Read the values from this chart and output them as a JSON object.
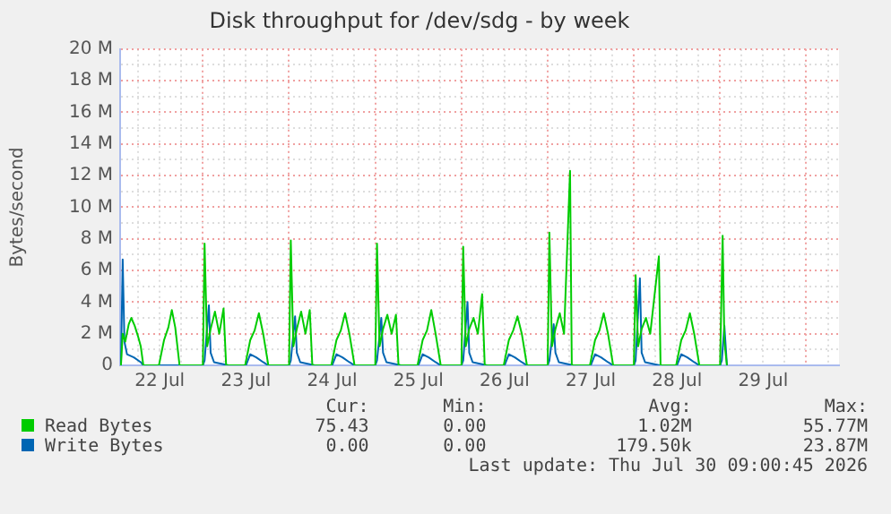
{
  "chart_data": {
    "type": "line",
    "title": "Disk throughput for /dev/sdg - by week",
    "ylabel": "Bytes/second",
    "xlim": [
      "2026-07-22T00:58",
      "2026-07-30T09:07"
    ],
    "ylim": [
      0,
      20
    ],
    "xticks": [
      {
        "value": "2026-07-22T06:00",
        "label": null
      },
      {
        "value": "2026-07-22T12:00",
        "label": "22 Jul"
      },
      {
        "value": "2026-07-22T18:00",
        "label": null
      },
      {
        "value": "2026-07-23T00:00",
        "label": null
      },
      {
        "value": "2026-07-23T06:00",
        "label": null
      },
      {
        "value": "2026-07-23T12:00",
        "label": "23 Jul"
      },
      {
        "value": "2026-07-23T18:00",
        "label": null
      },
      {
        "value": "2026-07-24T00:00",
        "label": null
      },
      {
        "value": "2026-07-24T06:00",
        "label": null
      },
      {
        "value": "2026-07-24T12:00",
        "label": "24 Jul"
      },
      {
        "value": "2026-07-24T18:00",
        "label": null
      },
      {
        "value": "2026-07-25T00:00",
        "label": null
      },
      {
        "value": "2026-07-25T06:00",
        "label": null
      },
      {
        "value": "2026-07-25T12:00",
        "label": "25 Jul"
      },
      {
        "value": "2026-07-25T18:00",
        "label": null
      },
      {
        "value": "2026-07-26T00:00",
        "label": null
      },
      {
        "value": "2026-07-26T06:00",
        "label": null
      },
      {
        "value": "2026-07-26T12:00",
        "label": "26 Jul"
      },
      {
        "value": "2026-07-26T18:00",
        "label": null
      },
      {
        "value": "2026-07-27T00:00",
        "label": null
      },
      {
        "value": "2026-07-27T06:00",
        "label": null
      },
      {
        "value": "2026-07-27T12:00",
        "label": "27 Jul"
      },
      {
        "value": "2026-07-27T18:00",
        "label": null
      },
      {
        "value": "2026-07-28T00:00",
        "label": null
      },
      {
        "value": "2026-07-28T06:00",
        "label": null
      },
      {
        "value": "2026-07-28T12:00",
        "label": "28 Jul"
      },
      {
        "value": "2026-07-28T18:00",
        "label": null
      },
      {
        "value": "2026-07-29T00:00",
        "label": null
      },
      {
        "value": "2026-07-29T06:00",
        "label": null
      },
      {
        "value": "2026-07-29T12:00",
        "label": "29 Jul"
      },
      {
        "value": "2026-07-29T18:00",
        "label": null
      },
      {
        "value": "2026-07-30T00:00",
        "label": null
      },
      {
        "value": "2026-07-30T06:00",
        "label": null
      }
    ],
    "yticks": [
      {
        "value": 0,
        "label": "0"
      },
      {
        "value": 1,
        "label": null
      },
      {
        "value": 2,
        "label": "2 M"
      },
      {
        "value": 3,
        "label": null
      },
      {
        "value": 4,
        "label": "4 M"
      },
      {
        "value": 5,
        "label": null
      },
      {
        "value": 6,
        "label": "6 M"
      },
      {
        "value": 7,
        "label": null
      },
      {
        "value": 8,
        "label": "8 M"
      },
      {
        "value": 9,
        "label": null
      },
      {
        "value": 10,
        "label": "10 M"
      },
      {
        "value": 11,
        "label": null
      },
      {
        "value": 12,
        "label": "12 M"
      },
      {
        "value": 13,
        "label": null
      },
      {
        "value": 14,
        "label": "14 M"
      },
      {
        "value": 15,
        "label": null
      },
      {
        "value": 16,
        "label": "16 M"
      },
      {
        "value": 17,
        "label": null
      },
      {
        "value": 18,
        "label": "18 M"
      },
      {
        "value": 19,
        "label": null
      },
      {
        "value": 20,
        "label": "20 M"
      }
    ],
    "grid": true,
    "legend": "bottom",
    "marker": "none",
    "line_style": "solid",
    "series": [
      {
        "name": "Read Bytes",
        "color": "#00cc00",
        "x": [
          "2026-07-22T01:12",
          "2026-07-22T01:41",
          "2026-07-22T02:24",
          "2026-07-22T03:22",
          "2026-07-22T04:05",
          "2026-07-22T05:02",
          "2026-07-22T06:00",
          "2026-07-22T06:43",
          "2026-07-22T07:26",
          "2026-07-22T11:46",
          "2026-07-22T13:12",
          "2026-07-22T14:24",
          "2026-07-22T15:22",
          "2026-07-22T16:19",
          "2026-07-22T17:31",
          "2026-07-23T00:00",
          "2026-07-23T00:29",
          "2026-07-23T01:12",
          "2026-07-23T02:10",
          "2026-07-23T03:22",
          "2026-07-23T04:34",
          "2026-07-23T05:46",
          "2026-07-23T06:29",
          "2026-07-23T11:46",
          "2026-07-23T13:12",
          "2026-07-23T14:24",
          "2026-07-23T15:36",
          "2026-07-23T16:48",
          "2026-07-23T18:14",
          "2026-07-24T00:00",
          "2026-07-24T00:29",
          "2026-07-24T01:12",
          "2026-07-24T02:10",
          "2026-07-24T03:22",
          "2026-07-24T04:34",
          "2026-07-24T05:46",
          "2026-07-24T06:29",
          "2026-07-24T11:46",
          "2026-07-24T13:12",
          "2026-07-24T14:24",
          "2026-07-24T15:36",
          "2026-07-24T16:48",
          "2026-07-24T18:14",
          "2026-07-25T00:00",
          "2026-07-25T00:29",
          "2026-07-25T01:12",
          "2026-07-25T02:10",
          "2026-07-25T03:22",
          "2026-07-25T04:34",
          "2026-07-25T05:46",
          "2026-07-25T06:29",
          "2026-07-25T11:46",
          "2026-07-25T13:12",
          "2026-07-25T14:24",
          "2026-07-25T15:36",
          "2026-07-25T16:48",
          "2026-07-25T18:14",
          "2026-07-26T00:00",
          "2026-07-26T00:29",
          "2026-07-26T01:12",
          "2026-07-26T02:10",
          "2026-07-26T03:22",
          "2026-07-26T04:34",
          "2026-07-26T05:46",
          "2026-07-26T06:29",
          "2026-07-26T11:46",
          "2026-07-26T13:12",
          "2026-07-26T14:24",
          "2026-07-26T15:36",
          "2026-07-26T16:48",
          "2026-07-26T18:14",
          "2026-07-27T00:00",
          "2026-07-27T00:29",
          "2026-07-27T01:12",
          "2026-07-27T02:10",
          "2026-07-27T03:22",
          "2026-07-27T04:34",
          "2026-07-27T06:14",
          "2026-07-27T06:43",
          "2026-07-27T11:46",
          "2026-07-27T13:12",
          "2026-07-27T14:24",
          "2026-07-27T15:36",
          "2026-07-27T16:48",
          "2026-07-27T18:14",
          "2026-07-28T00:00",
          "2026-07-28T00:29",
          "2026-07-28T01:12",
          "2026-07-28T02:10",
          "2026-07-28T03:22",
          "2026-07-28T04:34",
          "2026-07-28T06:58",
          "2026-07-28T07:26",
          "2026-07-28T11:46",
          "2026-07-28T13:12",
          "2026-07-28T14:24",
          "2026-07-28T15:36",
          "2026-07-28T16:48",
          "2026-07-28T18:14",
          "2026-07-29T00:00",
          "2026-07-29T00:43",
          "2026-07-29T01:12",
          "2026-07-29T01:55"
        ],
        "values": [
          0,
          2,
          1.5,
          2.6,
          3,
          2.5,
          1.8,
          1.2,
          0,
          0,
          1.6,
          2.4,
          3.5,
          2.4,
          0,
          0,
          7.7,
          1.2,
          2.3,
          3.4,
          2,
          3.6,
          0,
          0,
          1.6,
          2.2,
          3.3,
          2,
          0,
          0,
          7.9,
          1.2,
          2.3,
          3.4,
          2,
          3.5,
          0,
          0,
          1.6,
          2.2,
          3.3,
          2,
          0,
          0,
          7.7,
          1.2,
          2.3,
          3.2,
          2,
          3.2,
          0,
          0,
          1.6,
          2.2,
          3.5,
          2,
          0,
          0,
          7.5,
          1.2,
          2.3,
          3,
          2,
          4.5,
          0,
          0,
          1.6,
          2.2,
          3.1,
          2,
          0,
          0,
          8.4,
          1.2,
          2.3,
          3.3,
          2,
          12.3,
          0,
          0,
          1.6,
          2.2,
          3.3,
          2,
          0,
          0,
          5.7,
          1.2,
          2.3,
          3,
          2,
          6.9,
          0,
          0,
          1.6,
          2.2,
          3.3,
          2,
          0,
          0,
          8.2,
          1.5,
          0
        ]
      },
      {
        "name": "Write Bytes",
        "color": "#0066b3",
        "x": [
          "2026-07-22T01:12",
          "2026-07-22T01:41",
          "2026-07-22T02:10",
          "2026-07-22T02:53",
          "2026-07-22T04:48",
          "2026-07-22T06:43",
          "2026-07-22T07:26",
          "2026-07-23T00:00",
          "2026-07-23T00:29",
          "2026-07-23T01:41",
          "2026-07-23T02:10",
          "2026-07-23T03:07",
          "2026-07-23T07:12",
          "2026-07-23T12:00",
          "2026-07-23T13:12",
          "2026-07-23T14:53",
          "2026-07-23T16:48",
          "2026-07-23T18:14",
          "2026-07-24T00:00",
          "2026-07-24T00:29",
          "2026-07-24T01:41",
          "2026-07-24T02:10",
          "2026-07-24T03:07",
          "2026-07-24T07:12",
          "2026-07-24T12:00",
          "2026-07-24T13:12",
          "2026-07-24T14:53",
          "2026-07-24T16:48",
          "2026-07-24T18:14",
          "2026-07-25T00:00",
          "2026-07-25T00:29",
          "2026-07-25T01:41",
          "2026-07-25T02:10",
          "2026-07-25T03:07",
          "2026-07-25T07:12",
          "2026-07-25T12:00",
          "2026-07-25T13:12",
          "2026-07-25T14:53",
          "2026-07-25T16:48",
          "2026-07-25T18:14",
          "2026-07-26T00:00",
          "2026-07-26T00:29",
          "2026-07-26T01:41",
          "2026-07-26T02:10",
          "2026-07-26T03:07",
          "2026-07-26T07:12",
          "2026-07-26T12:00",
          "2026-07-26T13:12",
          "2026-07-26T14:53",
          "2026-07-26T16:48",
          "2026-07-26T18:14",
          "2026-07-27T00:00",
          "2026-07-27T00:29",
          "2026-07-27T01:41",
          "2026-07-27T02:10",
          "2026-07-27T03:07",
          "2026-07-27T07:12",
          "2026-07-27T12:00",
          "2026-07-27T13:12",
          "2026-07-27T14:53",
          "2026-07-27T16:48",
          "2026-07-27T18:14",
          "2026-07-28T00:00",
          "2026-07-28T00:29",
          "2026-07-28T01:41",
          "2026-07-28T02:10",
          "2026-07-28T03:07",
          "2026-07-28T07:12",
          "2026-07-28T12:00",
          "2026-07-28T13:12",
          "2026-07-28T14:53",
          "2026-07-28T16:48",
          "2026-07-28T18:14",
          "2026-07-29T00:00",
          "2026-07-29T00:29",
          "2026-07-29T01:12",
          "2026-07-29T01:55"
        ],
        "values": [
          0,
          6.7,
          1.5,
          0.7,
          0.5,
          0.2,
          0,
          0,
          0.3,
          3.8,
          0.8,
          0.2,
          0,
          0,
          0.7,
          0.5,
          0.2,
          0,
          0,
          0.3,
          3.1,
          0.8,
          0.2,
          0,
          0,
          0.7,
          0.5,
          0.2,
          0,
          0,
          0.3,
          3,
          0.8,
          0.2,
          0,
          0,
          0.7,
          0.5,
          0.2,
          0,
          0,
          0.3,
          4,
          0.8,
          0.2,
          0,
          0,
          0.7,
          0.5,
          0.2,
          0,
          0,
          0.3,
          2.6,
          0.8,
          0.2,
          0,
          0,
          0.7,
          0.5,
          0.2,
          0,
          0,
          0.3,
          5.5,
          0.8,
          0.2,
          0,
          0,
          0.7,
          0.5,
          0.2,
          0,
          0,
          0.3,
          2.5,
          0
        ]
      }
    ],
    "annotations": [
      "Cur:",
      "Min:",
      "Avg:",
      "Max:",
      "75.43",
      "0.00",
      "1.02M",
      "55.77M",
      "0.00",
      "0.00",
      "179.50k",
      "23.87M",
      "Last update: Thu Jul 30 09:00:45 2026"
    ]
  }
}
